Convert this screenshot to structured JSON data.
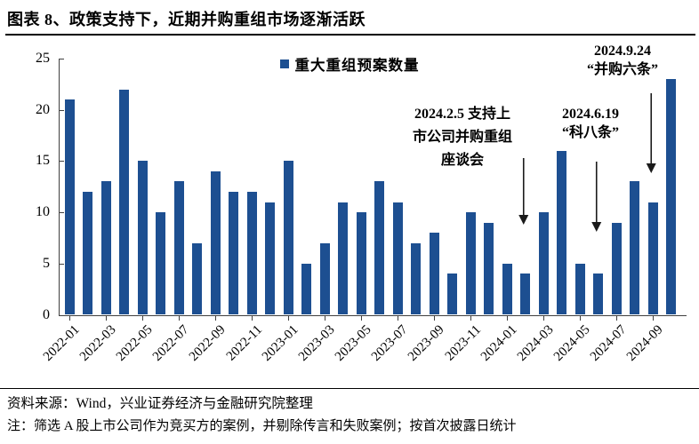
{
  "header": {
    "title": "图表 8、政策支持下，近期并购重组市场逐渐活跃"
  },
  "chart_data": {
    "type": "bar",
    "title": "",
    "xlabel": "",
    "ylabel": "",
    "legend_label": "重大重组预案数量",
    "legend_position": "top-center",
    "bar_color": "#1d4f91",
    "axis_color": "#404040",
    "arrow_color": "#1a1a1a",
    "ylim": [
      0,
      25
    ],
    "yticks": [
      0,
      5,
      10,
      15,
      20,
      25
    ],
    "x_tick_step": 2,
    "grid": false,
    "categories": [
      "2022-01",
      "2022-02",
      "2022-03",
      "2022-04",
      "2022-05",
      "2022-06",
      "2022-07",
      "2022-08",
      "2022-09",
      "2022-10",
      "2022-11",
      "2022-12",
      "2023-01",
      "2023-02",
      "2023-03",
      "2023-04",
      "2023-05",
      "2023-06",
      "2023-07",
      "2023-08",
      "2023-09",
      "2023-10",
      "2023-11",
      "2023-12",
      "2024-01",
      "2024-02",
      "2024-03",
      "2024-04",
      "2024-05",
      "2024-06",
      "2024-07",
      "2024-08",
      "2024-09",
      "2024-10"
    ],
    "values": [
      21,
      12,
      13,
      22,
      15,
      10,
      13,
      7,
      14,
      12,
      12,
      11,
      15,
      5,
      7,
      11,
      10,
      13,
      11,
      7,
      8,
      4,
      10,
      9,
      5,
      4,
      10,
      16,
      5,
      4,
      9,
      13,
      11,
      23
    ],
    "annotations": [
      {
        "text": "2024.2.5 支持上市公司并购重组座谈会",
        "lines": [
          "2024.2.5 支持上",
          "市公司并购重组",
          "座谈会"
        ],
        "target": "2024-02"
      },
      {
        "text": "2024.6.19 “科八条”",
        "lines": [
          "2024.6.19",
          "“科八条”"
        ],
        "target": "2024-06"
      },
      {
        "text": "2024.9.24 “并购六条”",
        "lines": [
          "2024.9.24",
          "“并购六条”"
        ],
        "target": "2024-09"
      }
    ]
  },
  "footer": {
    "source": "资料来源：Wind，兴业证券经济与金融研究院整理",
    "note": "注：筛选 A 股上市公司作为竞买方的案例，并剔除传言和失败案例；按首次披露日统计"
  }
}
